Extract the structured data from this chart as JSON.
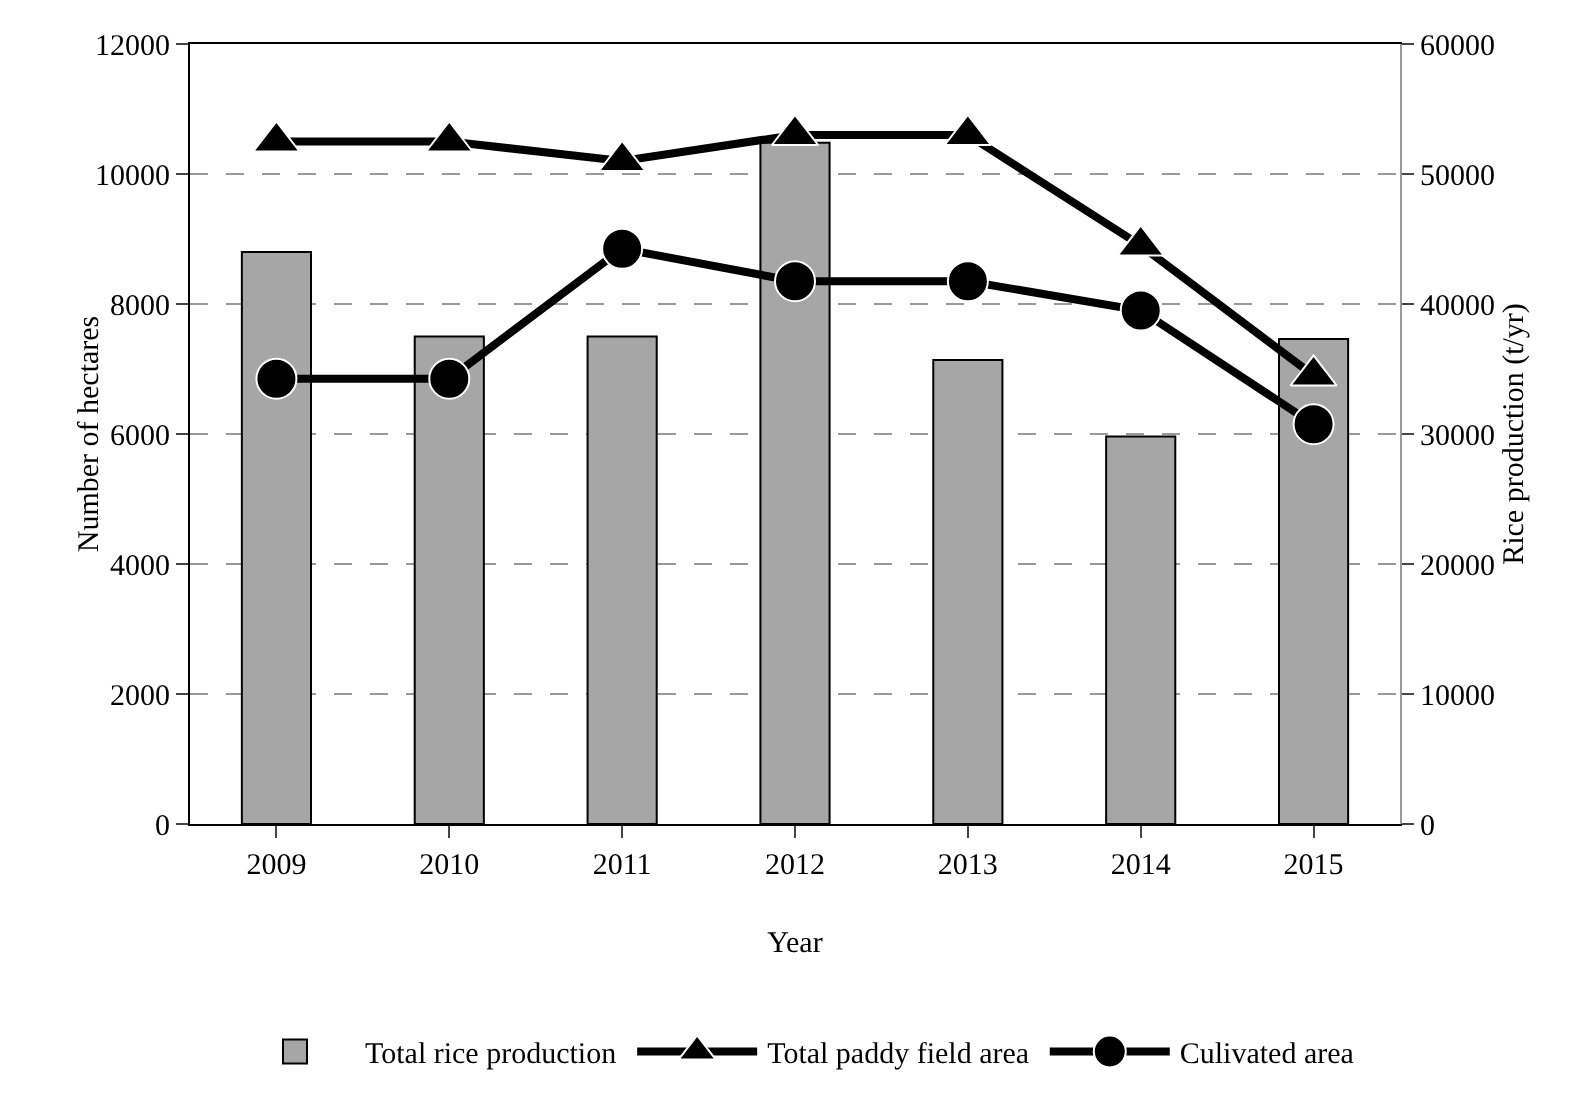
{
  "chart_data": {
    "type": "bar",
    "xlabel": "Year",
    "ylabel": "Number of hectares",
    "y2label": "Rice production (t/yr)",
    "categories": [
      "2009",
      "2010",
      "2011",
      "2012",
      "2013",
      "2014",
      "2015"
    ],
    "series": [
      {
        "name": "Total rice production",
        "axis": "y2",
        "color": "#a6a6a6",
        "values": [
          44000,
          37500,
          37500,
          52400,
          35700,
          29800,
          37300
        ]
      },
      {
        "name": "Total paddy field area",
        "type": "line",
        "marker": "triangle",
        "color": "#000000",
        "values": [
          10500,
          10500,
          10200,
          10600,
          10600,
          8900,
          6900
        ]
      },
      {
        "name": "Culivated area",
        "type": "line",
        "marker": "circle",
        "color": "#000000",
        "values": [
          6850,
          6850,
          8850,
          8350,
          8350,
          7900,
          6150
        ]
      }
    ],
    "ylim": [
      0,
      12000
    ],
    "yticks": [
      0,
      2000,
      4000,
      6000,
      8000,
      10000,
      12000
    ],
    "y2lim": [
      0,
      60000
    ],
    "y2ticks": [
      0,
      10000,
      20000,
      30000,
      40000,
      50000,
      60000
    ],
    "grid": "y",
    "legend": "bottom"
  }
}
